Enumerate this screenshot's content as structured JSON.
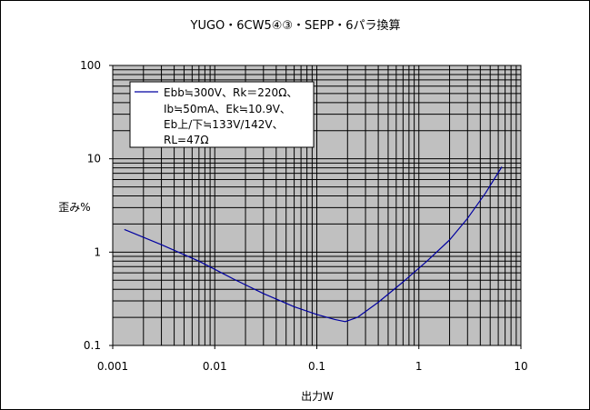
{
  "chart_data": {
    "type": "line",
    "title": "YUGO・6CW5④③・SEPP・6パラ換算",
    "xlabel": "出力W",
    "ylabel": "歪み%",
    "x_scale": "log",
    "y_scale": "log",
    "xlim": [
      0.001,
      10
    ],
    "ylim": [
      0.1,
      100
    ],
    "x_ticks": [
      "0.001",
      "0.01",
      "0.1",
      "1",
      "10"
    ],
    "y_ticks": [
      "100",
      "10",
      "1",
      "0.1"
    ],
    "grid": true,
    "plot_background": "#c0c0c0",
    "legend_position": "top-left",
    "series": [
      {
        "name": [
          "Ebb≒300V、Rk＝220Ω、",
          "Ib≒50mA、Ek≒10.9V、",
          "Eb上/下≒133V/142V、",
          "RL=47Ω"
        ],
        "color": "#0000a0",
        "x": [
          0.0013,
          0.003,
          0.007,
          0.015,
          0.03,
          0.06,
          0.1,
          0.15,
          0.19,
          0.25,
          0.4,
          0.7,
          1.2,
          2.0,
          3.0,
          4.5,
          6.5
        ],
        "y": [
          1.75,
          1.2,
          0.8,
          0.52,
          0.36,
          0.26,
          0.215,
          0.19,
          0.18,
          0.2,
          0.29,
          0.48,
          0.8,
          1.35,
          2.3,
          4.3,
          8.2
        ]
      }
    ]
  }
}
